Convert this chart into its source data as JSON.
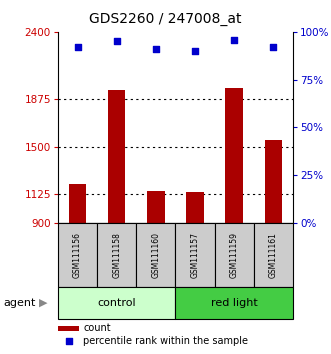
{
  "title": "GDS2260 / 247008_at",
  "samples": [
    "GSM111156",
    "GSM111158",
    "GSM111160",
    "GSM111157",
    "GSM111159",
    "GSM111161"
  ],
  "counts": [
    1210,
    1940,
    1155,
    1145,
    1960,
    1550
  ],
  "percentiles": [
    92,
    95,
    91,
    90,
    96,
    92
  ],
  "ylim_left": [
    900,
    2400
  ],
  "yticks_left": [
    900,
    1125,
    1500,
    1875,
    2400
  ],
  "ylim_right": [
    0,
    100
  ],
  "yticks_right": [
    0,
    25,
    50,
    75,
    100
  ],
  "ytick_labels_right": [
    "0%",
    "25%",
    "50%",
    "75%",
    "100%"
  ],
  "bar_color": "#aa0000",
  "dot_color": "#0000cc",
  "group1_label": "control",
  "group2_label": "red light",
  "group1_color": "#ccffcc",
  "group2_color": "#44cc44",
  "agent_label": "agent",
  "legend_count": "count",
  "legend_pct": "percentile rank within the sample",
  "ytick_color_left": "#cc0000",
  "ytick_color_right": "#0000cc",
  "bar_width": 0.45,
  "dot_size": 18,
  "title_fontsize": 10,
  "tick_fontsize": 7.5,
  "sample_fontsize": 5.5,
  "group_fontsize": 8,
  "legend_fontsize": 7,
  "agent_fontsize": 8
}
